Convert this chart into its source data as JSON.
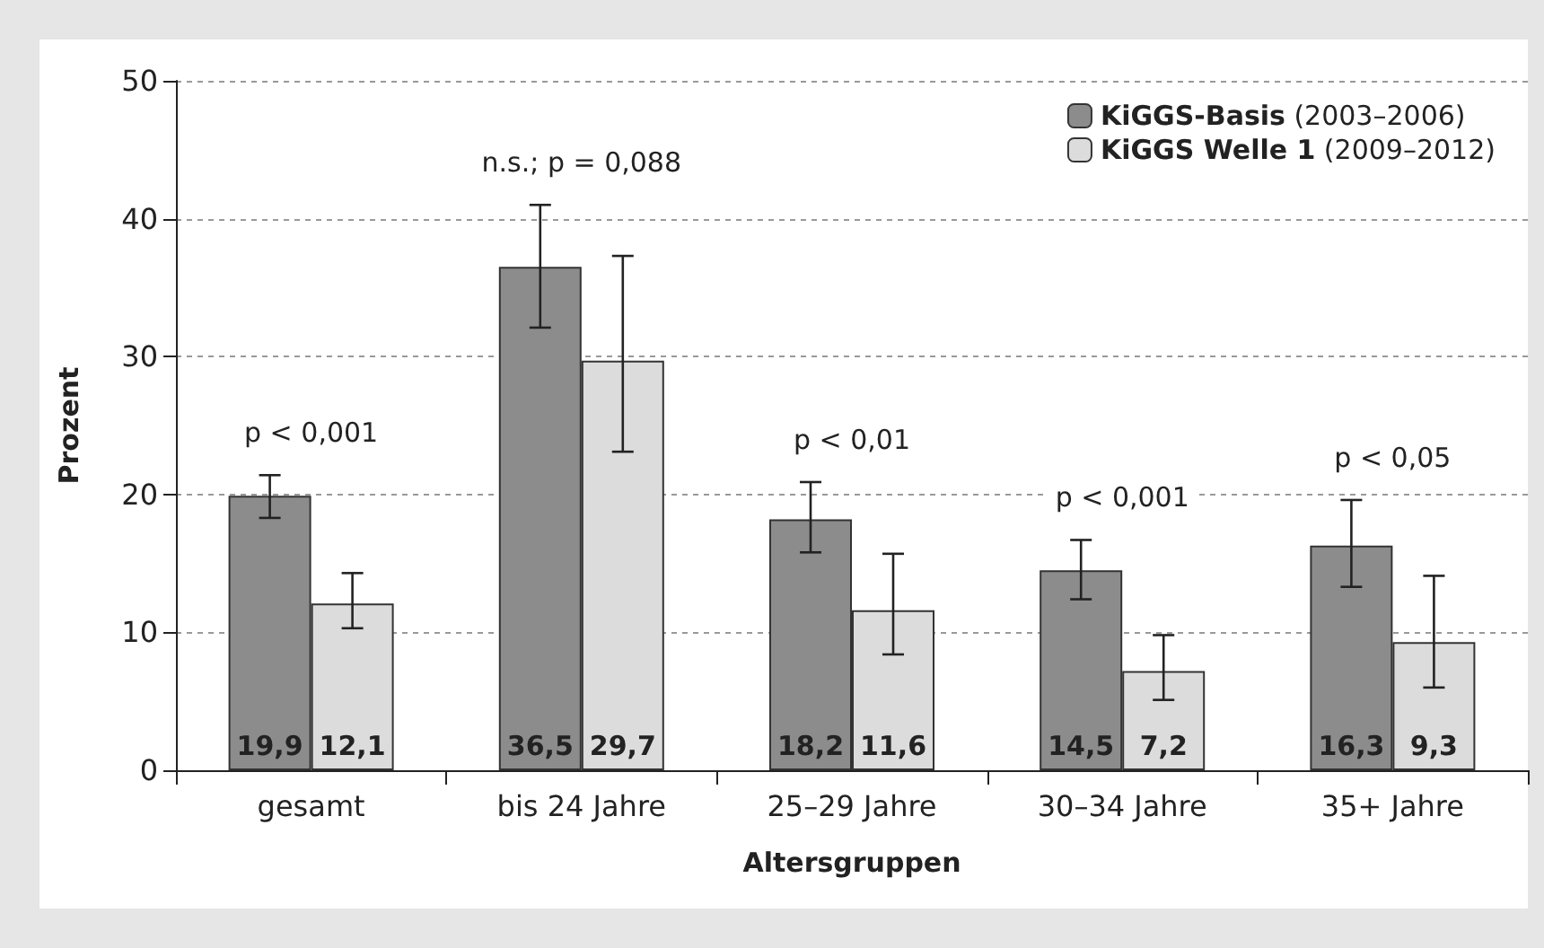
{
  "chart_data": {
    "type": "bar",
    "xlabel": "Altersgruppen",
    "ylabel": "Prozent",
    "categories": [
      "gesamt",
      "bis 24 Jahre",
      "25–29 Jahre",
      "30–34 Jahre",
      "35+ Jahre"
    ],
    "series": [
      {
        "name": "KiGGS-Basis (2003–2006)",
        "color": "#8c8c8c",
        "values": [
          19.9,
          36.5,
          18.2,
          14.5,
          16.3
        ],
        "value_labels": [
          "19,9",
          "36,5",
          "18,2",
          "14,5",
          "16,3"
        ],
        "errors": [
          [
            18.3,
            21.4
          ],
          [
            32.1,
            41.0
          ],
          [
            15.8,
            20.9
          ],
          [
            12.4,
            16.7
          ],
          [
            13.3,
            19.6
          ]
        ]
      },
      {
        "name": "KiGGS Welle 1 (2009–2012)",
        "color": "#dcdcdc",
        "values": [
          12.1,
          29.7,
          11.6,
          7.2,
          9.3
        ],
        "value_labels": [
          "12,1",
          "29,7",
          "11,6",
          "7,2",
          "9,3"
        ],
        "errors": [
          [
            10.3,
            14.3
          ],
          [
            23.1,
            37.3
          ],
          [
            8.4,
            15.7
          ],
          [
            5.1,
            9.8
          ],
          [
            6.0,
            14.1
          ]
        ]
      }
    ],
    "ylim": [
      0,
      50
    ],
    "yticks": [
      0,
      10,
      20,
      30,
      40,
      50
    ],
    "grid": "y",
    "legend": "top right",
    "annotations": [
      "p < 0,001",
      "n.s.; p = 0,088",
      "p < 0,01",
      "p < 0,001",
      "p < 0,05"
    ]
  }
}
